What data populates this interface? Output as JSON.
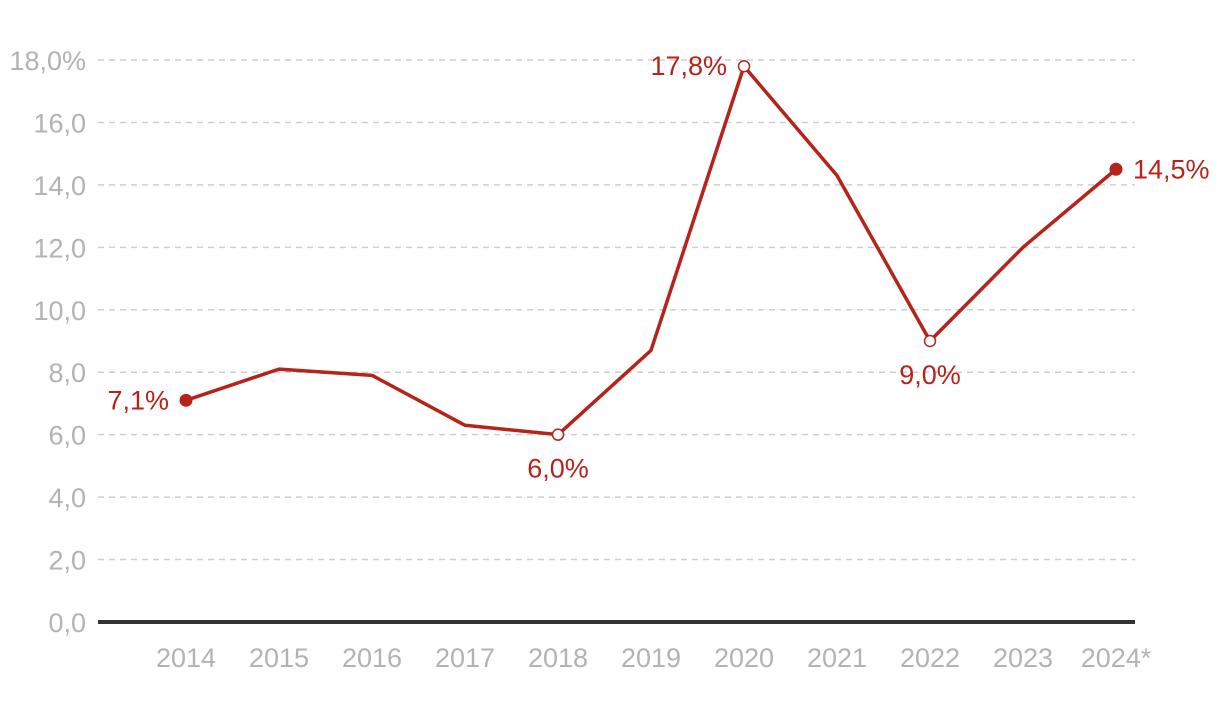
{
  "chart_data": {
    "type": "line",
    "categories": [
      "2014",
      "2015",
      "2016",
      "2017",
      "2018",
      "2019",
      "2020",
      "2021",
      "2022",
      "2023",
      "2024*"
    ],
    "series": [
      {
        "values": [
          7.1,
          8.1,
          7.9,
          6.3,
          6.0,
          8.7,
          17.8,
          14.3,
          9.0,
          12.0,
          14.5
        ]
      }
    ],
    "ylim": [
      0,
      18
    ],
    "y_ticks": [
      "0,0",
      "2,0",
      "4,0",
      "6,0",
      "8,0",
      "10,0",
      "12,0",
      "14,0",
      "16,0",
      "18,0%"
    ],
    "annotations": [
      {
        "index": 0,
        "label": "7,1%",
        "marker": "filled",
        "position": "left"
      },
      {
        "index": 4,
        "label": "6,0%",
        "marker": "hollow",
        "position": "below"
      },
      {
        "index": 6,
        "label": "17,8%",
        "marker": "hollow",
        "position": "left"
      },
      {
        "index": 8,
        "label": "9,0%",
        "marker": "hollow",
        "position": "below"
      },
      {
        "index": 10,
        "label": "14,5%",
        "marker": "filled",
        "position": "right"
      }
    ],
    "grid": true,
    "legend": "none",
    "colors": {
      "line": "#b5231a",
      "grid": "#cfcfcf",
      "baseline": "#333333",
      "tick": "#b3b3b3"
    }
  }
}
